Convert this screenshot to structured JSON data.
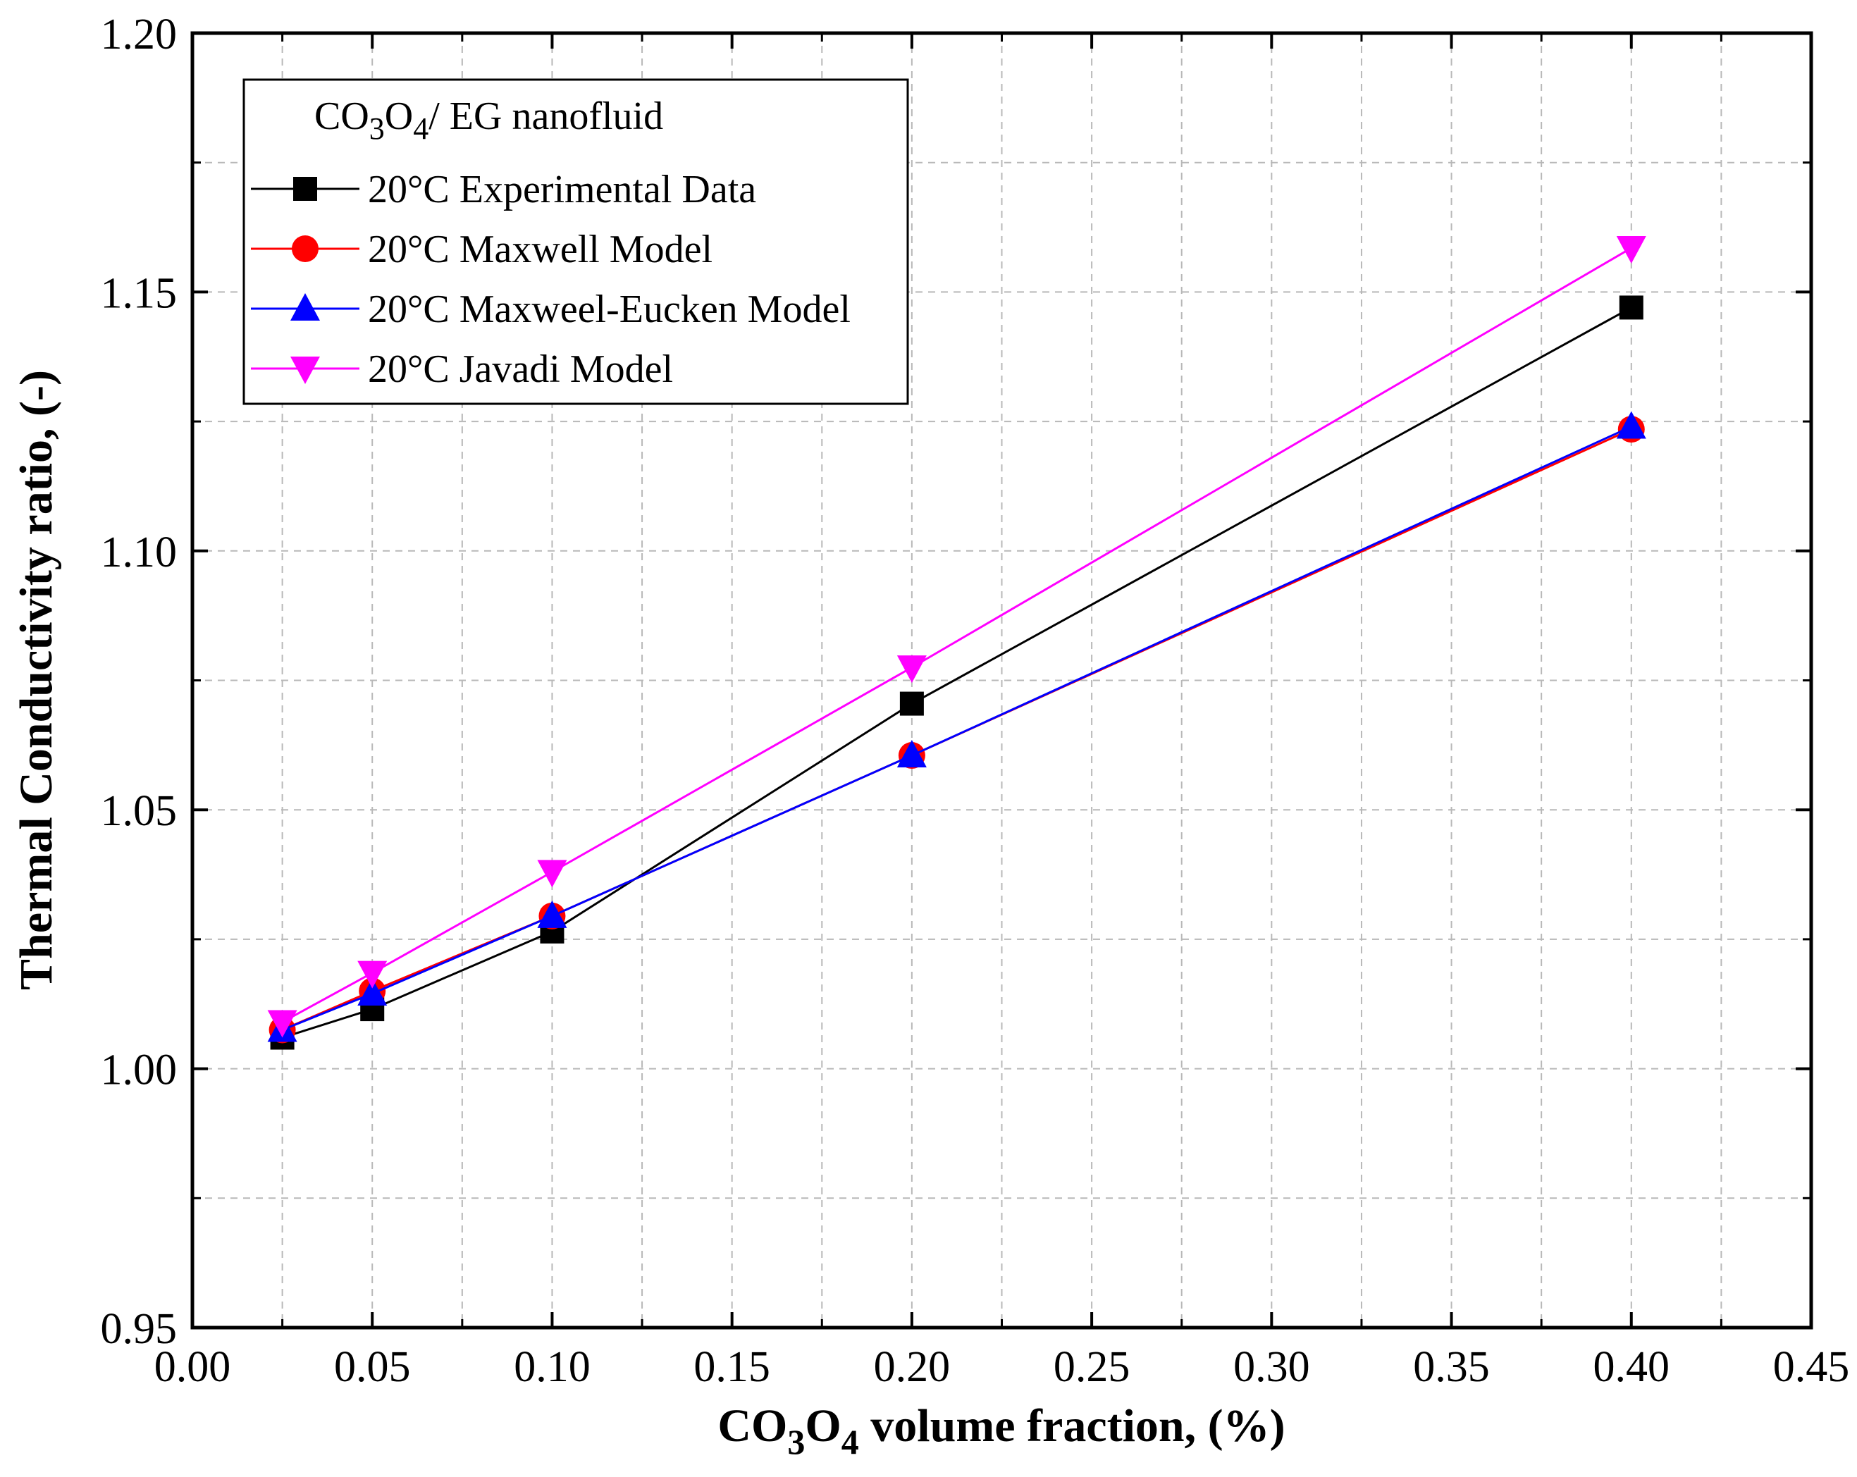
{
  "chart_data": {
    "type": "line",
    "title": "",
    "xlabel": {
      "main": "CO",
      "sub1": "3",
      "mid": "O",
      "sub2": "4",
      "rest": " volume fraction, (%)"
    },
    "ylabel": "Thermal Conductivity ratio, (-)",
    "xlim": [
      0.0,
      0.45
    ],
    "ylim": [
      0.95,
      1.2
    ],
    "xticks": [
      0.0,
      0.05,
      0.1,
      0.15,
      0.2,
      0.25,
      0.3,
      0.35,
      0.4,
      0.45
    ],
    "xtick_labels": [
      "0.00",
      "0.05",
      "0.10",
      "0.15",
      "0.20",
      "0.25",
      "0.30",
      "0.35",
      "0.40",
      "0.45"
    ],
    "yticks": [
      0.95,
      1.0,
      1.05,
      1.1,
      1.15,
      1.2
    ],
    "ytick_labels": [
      "0.95",
      "1.00",
      "1.05",
      "1.10",
      "1.15",
      "1.20"
    ],
    "grid": true,
    "legend": {
      "placement": "top-left",
      "title": {
        "main": "CO",
        "sub1": "3",
        "mid": "O",
        "sub2": "4",
        "rest": "/ EG nanofluid"
      }
    },
    "x": [
      0.025,
      0.05,
      0.1,
      0.2,
      0.4
    ],
    "series": [
      {
        "name": "20°C Experimental Data",
        "color": "#000000",
        "marker": "square",
        "values": [
          1.006,
          1.0115,
          1.0265,
          1.0705,
          1.147
        ]
      },
      {
        "name": "20°C Maxwell Model",
        "color": "#ff0000",
        "marker": "circle",
        "values": [
          1.0075,
          1.015,
          1.0295,
          1.0605,
          1.1235
        ]
      },
      {
        "name": "20°C Maxweel-Eucken Model",
        "color": "#0000ff",
        "marker": "triangle-up",
        "values": [
          1.0075,
          1.0145,
          1.0295,
          1.0605,
          1.124
        ]
      },
      {
        "name": "20°C Javadi Model",
        "color": "#ff00ff",
        "marker": "triangle-down",
        "values": [
          1.009,
          1.0185,
          1.038,
          1.0775,
          1.1585
        ]
      }
    ]
  }
}
